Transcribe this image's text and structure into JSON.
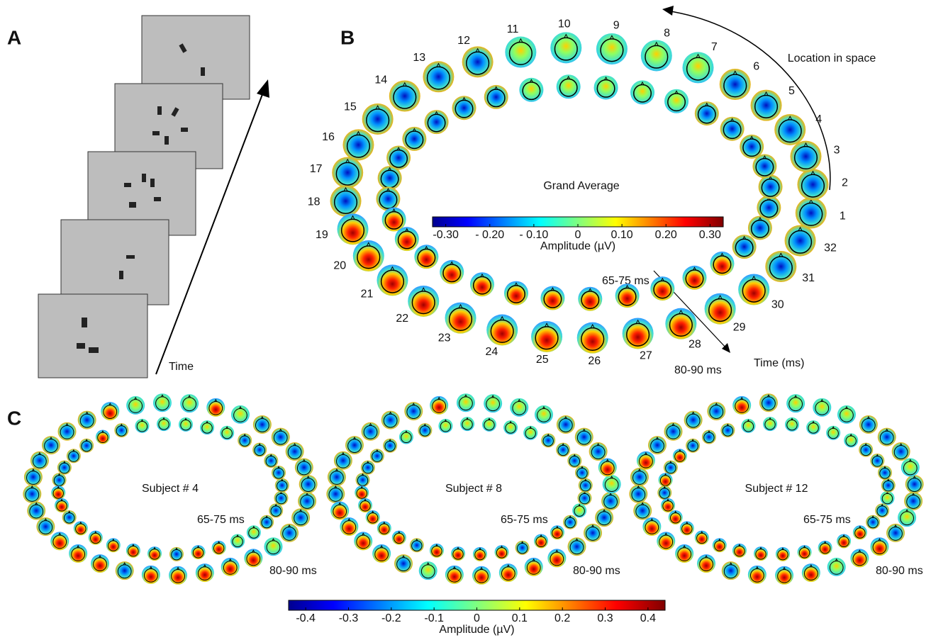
{
  "panel_a": {
    "label": "A",
    "time_label": "Time"
  },
  "panel_b": {
    "label": "B",
    "title": "Grand Average",
    "location_label": "Location in space",
    "time_axis_label": "Time (ms)",
    "inner_ring_label": "65-75 ms",
    "outer_ring_label": "80-90 ms",
    "locations": [
      1,
      2,
      3,
      4,
      5,
      6,
      7,
      8,
      9,
      10,
      11,
      12,
      13,
      14,
      15,
      16,
      17,
      18,
      19,
      20,
      21,
      22,
      23,
      24,
      25,
      26,
      27,
      28,
      29,
      30,
      31,
      32
    ],
    "colorbar": {
      "label": "Amplitude (µV)",
      "lim": [
        -0.33,
        0.33
      ],
      "ticks": [
        {
          "value": -0.3,
          "label": "-0.30"
        },
        {
          "value": -0.2,
          "label": "- 0.20"
        },
        {
          "value": -0.1,
          "label": "- 0.10"
        },
        0,
        {
          "value": 0.1,
          "label": "0.10"
        },
        {
          "value": 0.2,
          "label": "0.20"
        },
        {
          "value": 0.3,
          "label": "0.30"
        }
      ]
    }
  },
  "panel_c": {
    "label": "C",
    "subjects": [
      "Subject # 4",
      "Subject # 8",
      "Subject # 12"
    ],
    "inner_ring_label": "65-75 ms",
    "outer_ring_label": "80-90 ms",
    "colorbar": {
      "label": "Amplitude (µV)",
      "lim": [
        -0.44,
        0.44
      ],
      "ticks": [
        -0.4,
        -0.3,
        -0.2,
        -0.1,
        0,
        0.1,
        0.2,
        0.3,
        0.4
      ]
    }
  }
}
